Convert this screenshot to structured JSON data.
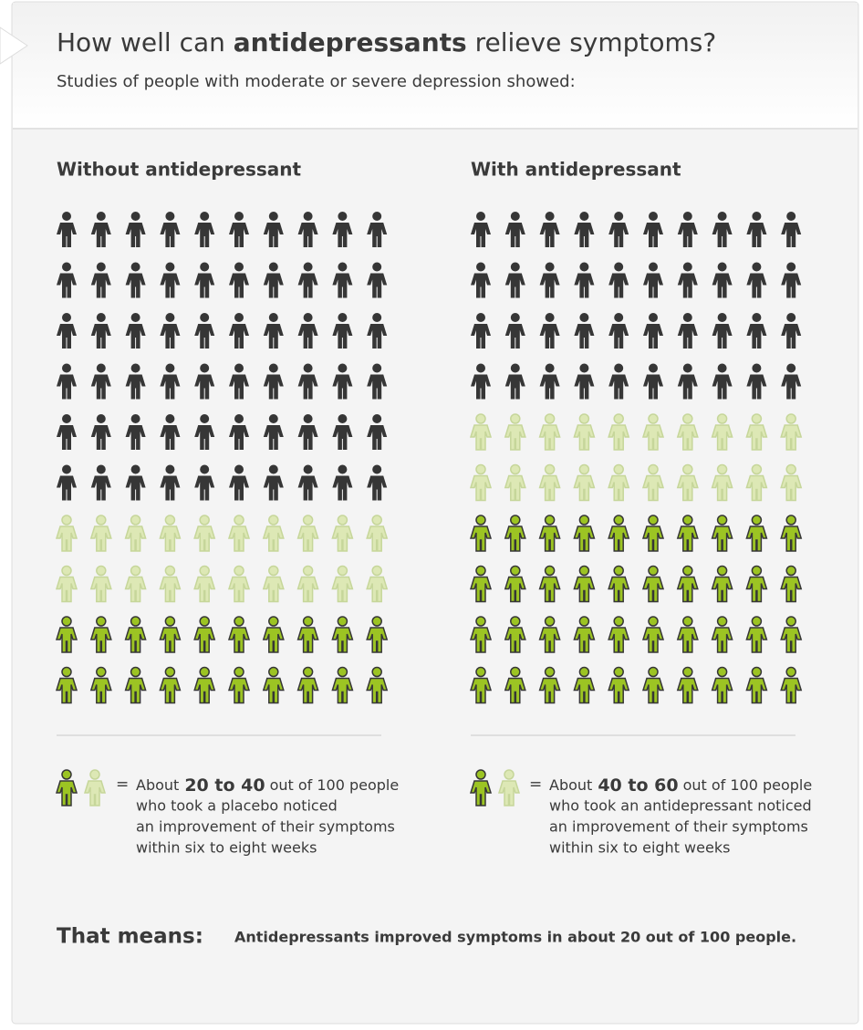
{
  "chart_data": {
    "type": "pictogram",
    "title_parts": [
      "How well can ",
      "antidepressants",
      " relieve symptoms?"
    ],
    "subtitle": "Studies of people with moderate or severe depression showed:",
    "panels": [
      {
        "title": "Without antidepressant",
        "groups": [
          {
            "count": 60,
            "color": "#363636",
            "outline": "none"
          },
          {
            "count": 20,
            "color": "#dde8b5",
            "outline": "#c6d69a"
          },
          {
            "count": 20,
            "color": "#9cc423",
            "outline": "#363636"
          }
        ],
        "legend": {
          "equals": "=",
          "before": "About",
          "range": "20 to 40",
          "after": "out of 100 people",
          "lines": [
            "who took a placebo noticed",
            "an improvement of their symptoms",
            "within six to eight weeks"
          ]
        }
      },
      {
        "title": "With antidepressant",
        "groups": [
          {
            "count": 40,
            "color": "#363636",
            "outline": "none"
          },
          {
            "count": 20,
            "color": "#dde8b5",
            "outline": "#c6d69a"
          },
          {
            "count": 40,
            "color": "#9cc423",
            "outline": "#363636"
          }
        ],
        "legend": {
          "equals": "=",
          "before": "About",
          "range": "40 to 60",
          "after": "out of 100 people",
          "lines": [
            "who took an antidepressant noticed",
            "an improvement of their symptoms",
            "within six to eight weeks"
          ]
        }
      }
    ],
    "columns": 10,
    "summary": {
      "label": "That means:",
      "text": "Antidepressants improved symptoms in about 20 out of 100 people."
    }
  }
}
